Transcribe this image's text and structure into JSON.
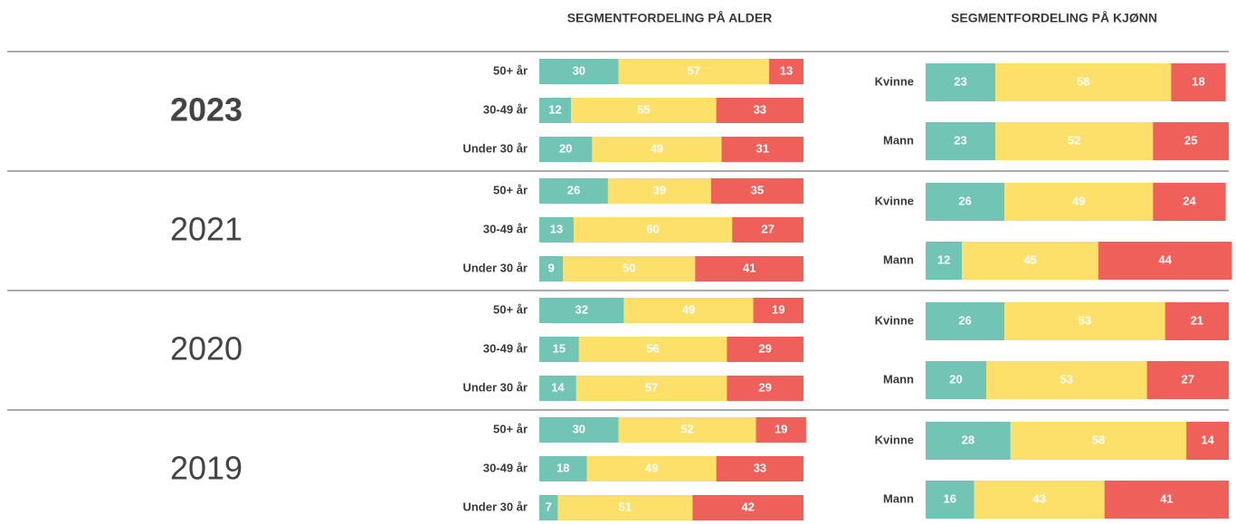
{
  "chart_data": [
    {
      "type": "stacked_bar",
      "title": "SEGMENTFORDELING PÅ ALDER",
      "xlim": [
        0,
        100
      ],
      "groups": [
        {
          "label": "2023",
          "categories": [
            "50+ år",
            "30-49 år",
            "Under 30 år"
          ],
          "series": [
            {
              "color": "#72c4b5",
              "values": [
                30,
                12,
                20
              ]
            },
            {
              "color": "#fde06a",
              "values": [
                57,
                55,
                49
              ]
            },
            {
              "color": "#f0605a",
              "values": [
                13,
                33,
                31
              ]
            }
          ]
        },
        {
          "label": "2021",
          "categories": [
            "50+ år",
            "30-49 år",
            "Under 30 år"
          ],
          "series": [
            {
              "color": "#72c4b5",
              "values": [
                26,
                13,
                9
              ]
            },
            {
              "color": "#fde06a",
              "values": [
                39,
                60,
                50
              ]
            },
            {
              "color": "#f0605a",
              "values": [
                35,
                27,
                41
              ]
            }
          ]
        },
        {
          "label": "2020",
          "categories": [
            "50+ år",
            "30-49 år",
            "Under 30 år"
          ],
          "series": [
            {
              "color": "#72c4b5",
              "values": [
                32,
                15,
                14
              ]
            },
            {
              "color": "#fde06a",
              "values": [
                49,
                56,
                57
              ]
            },
            {
              "color": "#f0605a",
              "values": [
                19,
                29,
                29
              ]
            }
          ]
        },
        {
          "label": "2019",
          "categories": [
            "50+ år",
            "30-49 år",
            "Under 30 år"
          ],
          "series": [
            {
              "color": "#72c4b5",
              "values": [
                30,
                18,
                7
              ]
            },
            {
              "color": "#fde06a",
              "values": [
                52,
                49,
                51
              ]
            },
            {
              "color": "#f0605a",
              "values": [
                19,
                33,
                42
              ]
            }
          ]
        }
      ]
    },
    {
      "type": "stacked_bar",
      "title": "SEGMENTFORDELING PÅ KJØNN",
      "xlim": [
        0,
        100
      ],
      "groups": [
        {
          "categories": [
            "Kvinne",
            "Mann"
          ],
          "series": [
            {
              "color": "#72c4b5",
              "values": [
                23,
                23
              ]
            },
            {
              "color": "#fde06a",
              "values": [
                58,
                52
              ]
            },
            {
              "color": "#f0605a",
              "values": [
                18,
                25
              ]
            }
          ]
        },
        {
          "categories": [
            "Kvinne",
            "Mann"
          ],
          "series": [
            {
              "color": "#72c4b5",
              "values": [
                26,
                12
              ]
            },
            {
              "color": "#fde06a",
              "values": [
                49,
                45
              ]
            },
            {
              "color": "#f0605a",
              "values": [
                24,
                44
              ]
            }
          ]
        },
        {
          "categories": [
            "Kvinne",
            "Mann"
          ],
          "series": [
            {
              "color": "#72c4b5",
              "values": [
                26,
                20
              ]
            },
            {
              "color": "#fde06a",
              "values": [
                53,
                53
              ]
            },
            {
              "color": "#f0605a",
              "values": [
                21,
                27
              ]
            }
          ]
        },
        {
          "categories": [
            "Kvinne",
            "Mann"
          ],
          "series": [
            {
              "color": "#72c4b5",
              "values": [
                28,
                16
              ]
            },
            {
              "color": "#fde06a",
              "values": [
                58,
                43
              ]
            },
            {
              "color": "#f0605a",
              "values": [
                14,
                41
              ]
            }
          ]
        }
      ]
    }
  ]
}
